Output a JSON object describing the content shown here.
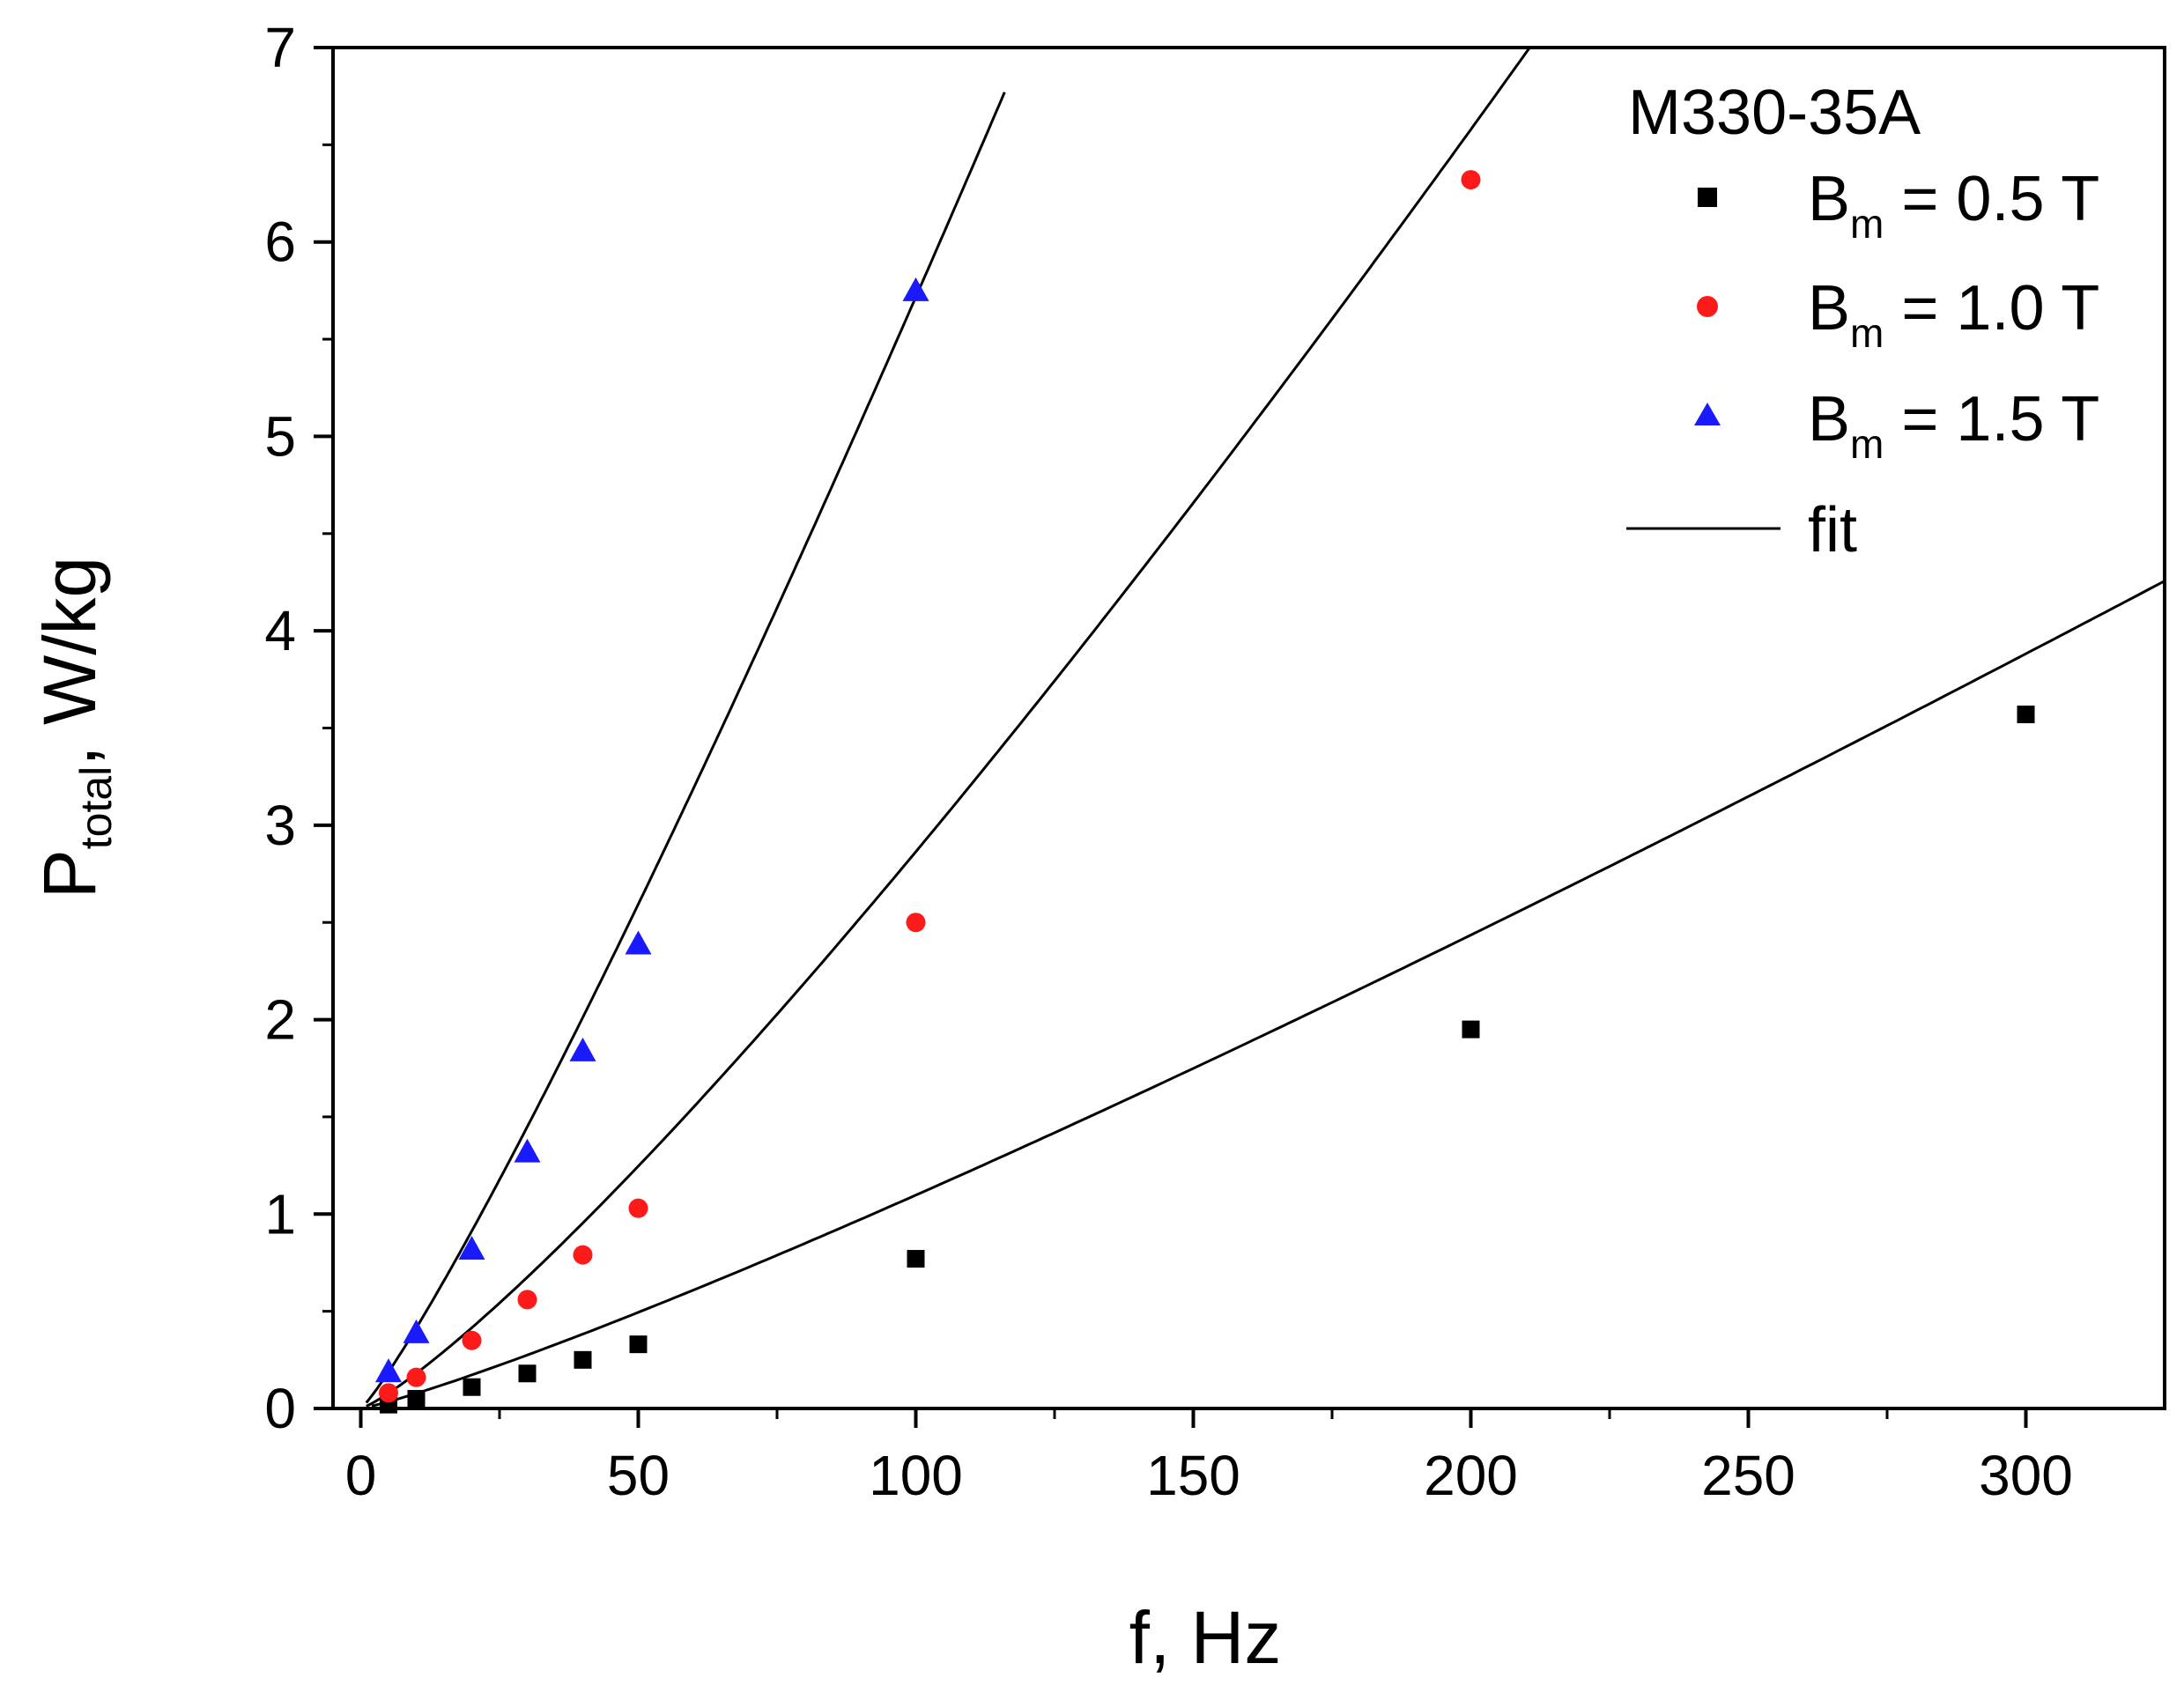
{
  "chart_data": {
    "type": "scatter",
    "title": "",
    "xlabel": "f, Hz",
    "ylabel_main": "P",
    "ylabel_sub": "total",
    "ylabel_unit": ", W/kg",
    "xlim": [
      -5,
      325
    ],
    "ylim": [
      0,
      7
    ],
    "xticks": [
      0,
      50,
      100,
      150,
      200,
      250,
      300
    ],
    "yticks": [
      0,
      1,
      2,
      3,
      4,
      5,
      6,
      7
    ],
    "x_minor_step": 25,
    "y_minor_step": 0.5,
    "grid": false,
    "legend_position": "top-right",
    "legend_title": "M330-35A",
    "series": [
      {
        "name_main": "B",
        "name_sub": "m",
        "name_rest": " = 0.5 T",
        "marker": "square",
        "color": "#000000",
        "points": [
          [
            5,
            0.02
          ],
          [
            10,
            0.05
          ],
          [
            20,
            0.11
          ],
          [
            30,
            0.18
          ],
          [
            40,
            0.25
          ],
          [
            50,
            0.33
          ],
          [
            100,
            0.77
          ],
          [
            200,
            1.95
          ],
          [
            300,
            3.57
          ]
        ],
        "fit": {
          "a": 0.0055,
          "b": 1.15,
          "x0": 2,
          "x1": 325
        }
      },
      {
        "name_main": "B",
        "name_sub": "m",
        "name_rest": " = 1.0 T",
        "marker": "circle",
        "color": "#ff1a1a",
        "points": [
          [
            5,
            0.08
          ],
          [
            10,
            0.16
          ],
          [
            20,
            0.35
          ],
          [
            30,
            0.56
          ],
          [
            40,
            0.79
          ],
          [
            50,
            1.03
          ],
          [
            100,
            2.5
          ],
          [
            200,
            6.32
          ]
        ],
        "fit": {
          "a": 0.0114,
          "b": 1.2,
          "x0": 1,
          "x1": 218
        }
      },
      {
        "name_main": "B",
        "name_sub": "m",
        "name_rest": " = 1.5 T",
        "marker": "triangle",
        "color": "#1a1aff",
        "points": [
          [
            5,
            0.19
          ],
          [
            10,
            0.39
          ],
          [
            20,
            0.82
          ],
          [
            30,
            1.32
          ],
          [
            40,
            1.84
          ],
          [
            50,
            2.39
          ],
          [
            100,
            5.75
          ]
        ],
        "fit": {
          "a": 0.03,
          "b": 1.14,
          "x0": 1,
          "x1": 116
        }
      }
    ],
    "fit_label": "fit",
    "fit_color": "#000000"
  }
}
